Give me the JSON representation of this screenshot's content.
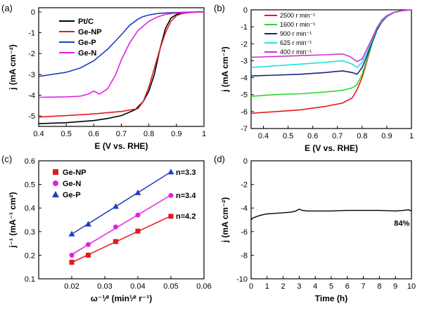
{
  "chart_data": [
    {
      "panel": "(a)",
      "type": "line",
      "xlabel": "E (V vs. RHE)",
      "ylabel": "j (mA cm⁻²)",
      "xlim": [
        0.4,
        1.0
      ],
      "ylim": [
        -5.5,
        0.2
      ],
      "xticks": [
        0.4,
        0.5,
        0.6,
        0.7,
        0.8,
        0.9,
        1.0
      ],
      "yticks": [
        -5,
        -4,
        -3,
        -2,
        -1,
        0
      ],
      "legend_position": "top-left",
      "series": [
        {
          "name": "Pt/C",
          "color": "#000000",
          "x": [
            0.4,
            0.5,
            0.6,
            0.65,
            0.7,
            0.75,
            0.78,
            0.8,
            0.82,
            0.84,
            0.86,
            0.88,
            0.9,
            0.92,
            0.95,
            0.98,
            1.0
          ],
          "y": [
            -5.37,
            -5.32,
            -5.22,
            -5.12,
            -4.98,
            -4.7,
            -4.3,
            -3.8,
            -3.0,
            -1.8,
            -0.8,
            -0.3,
            -0.12,
            -0.05,
            -0.02,
            0,
            0
          ]
        },
        {
          "name": "Ge-NP",
          "color": "#e31a1c",
          "x": [
            0.4,
            0.5,
            0.6,
            0.7,
            0.76,
            0.78,
            0.8,
            0.82,
            0.84,
            0.86,
            0.88,
            0.9,
            0.92,
            0.95,
            1.0
          ],
          "y": [
            -5.05,
            -4.98,
            -4.9,
            -4.78,
            -4.65,
            -4.3,
            -3.6,
            -2.7,
            -1.8,
            -1.0,
            -0.45,
            -0.18,
            -0.08,
            -0.03,
            0
          ]
        },
        {
          "name": "Ge-P",
          "color": "#1f3fbf",
          "x": [
            0.4,
            0.5,
            0.55,
            0.6,
            0.65,
            0.7,
            0.73,
            0.76,
            0.78,
            0.8,
            0.83,
            0.86,
            0.9,
            0.95,
            1.0
          ],
          "y": [
            -3.1,
            -2.9,
            -2.7,
            -2.35,
            -1.8,
            -1.1,
            -0.65,
            -0.35,
            -0.22,
            -0.15,
            -0.08,
            -0.05,
            -0.03,
            -0.01,
            0
          ]
        },
        {
          "name": "Ge-N",
          "color": "#e020e0",
          "x": [
            0.4,
            0.5,
            0.55,
            0.58,
            0.6,
            0.62,
            0.65,
            0.68,
            0.7,
            0.73,
            0.76,
            0.8,
            0.83,
            0.86,
            0.9,
            0.95,
            1.0
          ],
          "y": [
            -4.1,
            -4.08,
            -4.05,
            -3.95,
            -3.8,
            -3.95,
            -3.7,
            -3.0,
            -2.3,
            -1.5,
            -0.9,
            -0.45,
            -0.25,
            -0.12,
            -0.05,
            -0.02,
            0
          ]
        }
      ]
    },
    {
      "panel": "(b)",
      "type": "line",
      "xlabel": "E (V vs. RHE)",
      "ylabel": "j (mA cm⁻²)",
      "xlim": [
        0.35,
        1.0
      ],
      "ylim": [
        -7,
        0
      ],
      "xticks": [
        0.4,
        0.5,
        0.6,
        0.7,
        0.8,
        0.9,
        1.0
      ],
      "yticks": [
        -7,
        -6,
        -5,
        -4,
        -3,
        -2,
        -1,
        0
      ],
      "legend_position": "top-left",
      "series": [
        {
          "name": "2500 r min⁻¹",
          "color": "#e31a1c",
          "x": [
            0.35,
            0.45,
            0.55,
            0.65,
            0.72,
            0.76,
            0.78,
            0.8,
            0.82,
            0.84,
            0.86,
            0.88,
            0.9,
            0.93,
            0.96,
            1.0
          ],
          "y": [
            -6.1,
            -6.0,
            -5.9,
            -5.7,
            -5.5,
            -5.2,
            -4.7,
            -4.0,
            -3.0,
            -2.0,
            -1.2,
            -0.7,
            -0.4,
            -0.15,
            -0.05,
            0
          ]
        },
        {
          "name": "1600 r min⁻¹",
          "color": "#2fd62f",
          "x": [
            0.35,
            0.45,
            0.55,
            0.65,
            0.72,
            0.76,
            0.78,
            0.8,
            0.82,
            0.84,
            0.86,
            0.88,
            0.9,
            0.93,
            0.96,
            1.0
          ],
          "y": [
            -5.1,
            -5.0,
            -4.95,
            -4.85,
            -4.75,
            -4.6,
            -4.4,
            -3.8,
            -2.9,
            -2.0,
            -1.2,
            -0.7,
            -0.4,
            -0.15,
            -0.05,
            0
          ]
        },
        {
          "name": "900 r min⁻¹",
          "color": "#1a237e",
          "x": [
            0.35,
            0.45,
            0.55,
            0.65,
            0.72,
            0.76,
            0.78,
            0.8,
            0.82,
            0.84,
            0.86,
            0.88,
            0.9,
            0.93,
            0.96,
            1.0
          ],
          "y": [
            -3.9,
            -3.85,
            -3.8,
            -3.7,
            -3.6,
            -3.7,
            -3.8,
            -3.4,
            -2.7,
            -1.9,
            -1.2,
            -0.7,
            -0.4,
            -0.15,
            -0.05,
            0
          ]
        },
        {
          "name": "625 r min⁻¹",
          "color": "#22e0e0",
          "x": [
            0.35,
            0.45,
            0.55,
            0.65,
            0.72,
            0.76,
            0.78,
            0.8,
            0.82,
            0.84,
            0.86,
            0.88,
            0.9,
            0.93,
            0.96,
            1.0
          ],
          "y": [
            -3.4,
            -3.3,
            -3.2,
            -3.1,
            -3.0,
            -3.2,
            -3.4,
            -3.1,
            -2.5,
            -1.8,
            -1.1,
            -0.65,
            -0.38,
            -0.15,
            -0.05,
            0
          ]
        },
        {
          "name": "400 r min⁻¹",
          "color": "#cc33cc",
          "x": [
            0.35,
            0.45,
            0.55,
            0.65,
            0.72,
            0.75,
            0.78,
            0.8,
            0.82,
            0.84,
            0.86,
            0.88,
            0.9,
            0.93,
            0.96,
            1.0
          ],
          "y": [
            -2.8,
            -2.75,
            -2.7,
            -2.65,
            -2.6,
            -2.75,
            -3.05,
            -2.9,
            -2.3,
            -1.7,
            -1.05,
            -0.6,
            -0.35,
            -0.14,
            -0.05,
            0
          ]
        }
      ]
    },
    {
      "panel": "(c)",
      "type": "scatter",
      "xlabel": "ω⁻¹⁄² (min¹⁄² r⁻¹)",
      "ylabel": "j⁻¹ (mA⁻¹ cm²)",
      "xlim": [
        0.01,
        0.06
      ],
      "ylim": [
        0.1,
        0.6
      ],
      "xticks": [
        0.02,
        0.03,
        0.04,
        0.05,
        0.06
      ],
      "xtick_labels": [
        "0.02",
        "0.03",
        "0.04",
        "0.05",
        "0.06"
      ],
      "yticks": [
        0.1,
        0.2,
        0.3,
        0.4,
        0.5,
        0.6
      ],
      "ytick_labels": [
        "0.1",
        "0.2",
        "0.3",
        "0.4",
        "0.5",
        "0.6"
      ],
      "legend_position": "top-left",
      "series": [
        {
          "name": "Ge-NP",
          "color": "#e31a1c",
          "marker": "square",
          "x": [
            0.02,
            0.025,
            0.0333,
            0.04,
            0.05
          ],
          "y": [
            0.17,
            0.2,
            0.258,
            0.302,
            0.365
          ],
          "fit_label": "n=4.2"
        },
        {
          "name": "Ge-N",
          "color": "#e020e0",
          "marker": "circle",
          "x": [
            0.02,
            0.025,
            0.0333,
            0.04,
            0.05
          ],
          "y": [
            0.2,
            0.245,
            0.32,
            0.37,
            0.453
          ],
          "fit_label": "n=3.4"
        },
        {
          "name": "Ge-P",
          "color": "#1f3fbf",
          "marker": "triangle",
          "x": [
            0.02,
            0.025,
            0.0333,
            0.04,
            0.05
          ],
          "y": [
            0.29,
            0.332,
            0.407,
            0.465,
            0.553
          ],
          "fit_label": "n=3.3"
        }
      ]
    },
    {
      "panel": "(d)",
      "type": "line",
      "xlabel": "Time (h)",
      "ylabel": "j (mA cm⁻²)",
      "xlim": [
        0,
        10
      ],
      "ylim": [
        -10,
        0
      ],
      "xticks": [
        0,
        1,
        2,
        3,
        4,
        5,
        6,
        7,
        8,
        9,
        10
      ],
      "yticks": [
        -10,
        -8,
        -6,
        -4,
        -2,
        0
      ],
      "annotation": "84%",
      "series": [
        {
          "color": "#000000",
          "x": [
            0,
            0.1,
            0.3,
            0.5,
            0.8,
            1.0,
            1.5,
            2.0,
            2.5,
            2.8,
            3.0,
            3.2,
            3.5,
            4.0,
            5.0,
            6.0,
            7.0,
            8.0,
            9.0,
            9.5,
            9.8,
            10.0
          ],
          "y": [
            -5.0,
            -4.85,
            -4.75,
            -4.65,
            -4.55,
            -4.5,
            -4.45,
            -4.4,
            -4.35,
            -4.25,
            -4.1,
            -4.2,
            -4.25,
            -4.25,
            -4.25,
            -4.2,
            -4.2,
            -4.2,
            -4.25,
            -4.2,
            -4.15,
            -4.25
          ]
        }
      ]
    }
  ]
}
